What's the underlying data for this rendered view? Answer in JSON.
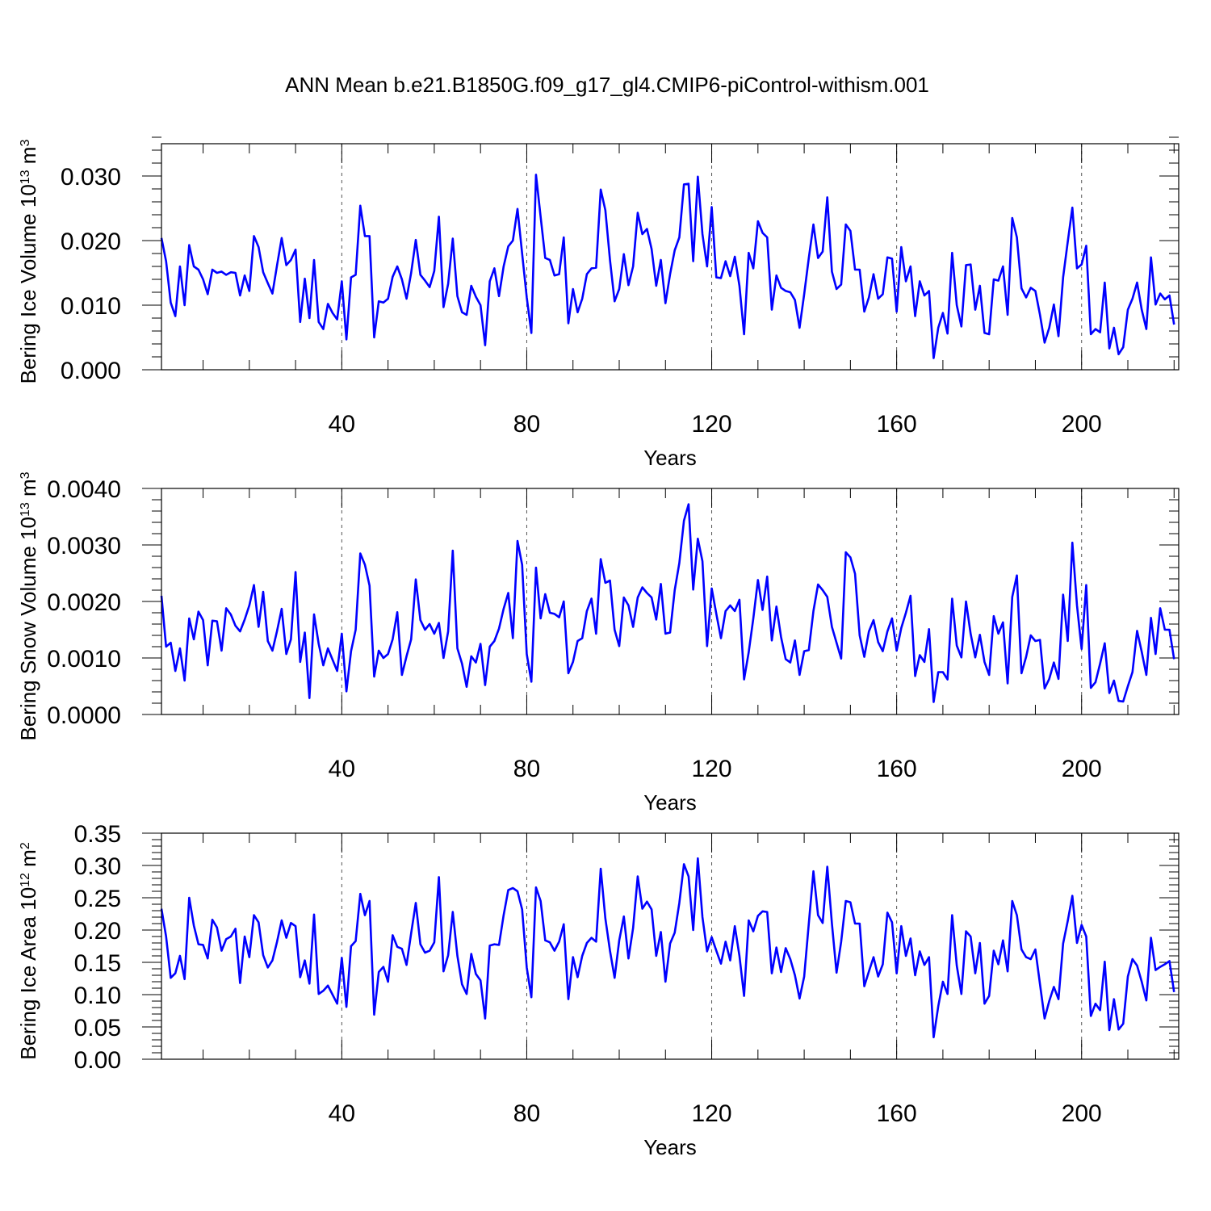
{
  "figure": {
    "title": "ANN Mean b.e21.B1850G.f09_g17_gl4.CMIP6-piControl-withism.001"
  },
  "chart_data": [
    {
      "type": "line",
      "id": "ice-volume",
      "ylabel": {
        "text": "Bering Ice Volume 10",
        "exp": "13",
        "unit": " m",
        "unit_exp": "3"
      },
      "xlabel": "Years",
      "xlim": [
        1,
        221
      ],
      "ylim": [
        0,
        0.035
      ],
      "xticks": [
        40,
        80,
        120,
        160,
        200
      ],
      "xtick_labels": [
        "40",
        "80",
        "120",
        "160",
        "200"
      ],
      "yticks": [
        0,
        0.01,
        0.02,
        0.03
      ],
      "ytick_labels": [
        "0.000",
        "0.010",
        "0.020",
        "0.030"
      ],
      "grid": "vertical-dashed-at-major-x-ticks",
      "series": [
        {
          "color": "#0000ff",
          "x_start": 1,
          "values": [
            0.0204,
            0.0168,
            0.0104,
            0.0083,
            0.016,
            0.01,
            0.0193,
            0.016,
            0.0155,
            0.014,
            0.0117,
            0.0155,
            0.015,
            0.0152,
            0.0147,
            0.0151,
            0.015,
            0.0115,
            0.0146,
            0.0122,
            0.0207,
            0.019,
            0.0151,
            0.0134,
            0.0118,
            0.0162,
            0.0204,
            0.0162,
            0.017,
            0.0186,
            0.0074,
            0.0141,
            0.008,
            0.017,
            0.0074,
            0.0063,
            0.0102,
            0.0088,
            0.0078,
            0.0137,
            0.0047,
            0.0143,
            0.0147,
            0.0254,
            0.0207,
            0.0207,
            0.005,
            0.0106,
            0.0104,
            0.011,
            0.0144,
            0.016,
            0.014,
            0.011,
            0.015,
            0.0201,
            0.0147,
            0.0138,
            0.0128,
            0.0153,
            0.0237,
            0.0097,
            0.0133,
            0.0203,
            0.0114,
            0.0089,
            0.0085,
            0.013,
            0.0113,
            0.01,
            0.0038,
            0.0137,
            0.0157,
            0.0114,
            0.016,
            0.0191,
            0.02,
            0.0249,
            0.018,
            0.0112,
            0.0057,
            0.0302,
            0.0237,
            0.0173,
            0.017,
            0.0146,
            0.0148,
            0.0205,
            0.0072,
            0.0125,
            0.0089,
            0.011,
            0.0148,
            0.0157,
            0.0158,
            0.0279,
            0.0247,
            0.017,
            0.0106,
            0.0125,
            0.0179,
            0.0131,
            0.016,
            0.0243,
            0.021,
            0.0218,
            0.0187,
            0.013,
            0.017,
            0.0103,
            0.0148,
            0.0185,
            0.0205,
            0.0287,
            0.0288,
            0.0168,
            0.0299,
            0.021,
            0.016,
            0.0252,
            0.0143,
            0.0142,
            0.0168,
            0.0145,
            0.0175,
            0.013,
            0.0055,
            0.0181,
            0.0157,
            0.023,
            0.0212,
            0.0205,
            0.0093,
            0.0146,
            0.0127,
            0.0122,
            0.012,
            0.0108,
            0.0065,
            0.0117,
            0.0173,
            0.0225,
            0.0173,
            0.0183,
            0.0267,
            0.0152,
            0.0125,
            0.0132,
            0.0225,
            0.0215,
            0.0155,
            0.0155,
            0.009,
            0.0112,
            0.0148,
            0.011,
            0.0117,
            0.0174,
            0.0172,
            0.009,
            0.019,
            0.0137,
            0.016,
            0.0083,
            0.0137,
            0.0115,
            0.0122,
            0.0018,
            0.0065,
            0.0088,
            0.0056,
            0.0181,
            0.01,
            0.0067,
            0.0162,
            0.0163,
            0.0093,
            0.013,
            0.0057,
            0.0055,
            0.014,
            0.0138,
            0.016,
            0.0085,
            0.0235,
            0.0205,
            0.0126,
            0.0112,
            0.0127,
            0.0122,
            0.0085,
            0.0042,
            0.0065,
            0.0101,
            0.0052,
            0.0143,
            0.0198,
            0.0251,
            0.0157,
            0.0163,
            0.0192,
            0.0055,
            0.0063,
            0.0058,
            0.0135,
            0.0033,
            0.0065,
            0.0024,
            0.0035,
            0.0093,
            0.011,
            0.0135,
            0.0093,
            0.0063,
            0.0174,
            0.0101,
            0.0118,
            0.0109,
            0.0115,
            0.007
          ]
        }
      ]
    },
    {
      "type": "line",
      "id": "snow-volume",
      "ylabel": {
        "text": "Bering Snow Volume 10",
        "exp": "13",
        "unit": " m",
        "unit_exp": "3"
      },
      "xlabel": "Years",
      "xlim": [
        1,
        221
      ],
      "ylim": [
        0,
        0.004
      ],
      "xticks": [
        40,
        80,
        120,
        160,
        200
      ],
      "xtick_labels": [
        "40",
        "80",
        "120",
        "160",
        "200"
      ],
      "yticks": [
        0,
        0.001,
        0.002,
        0.003,
        0.004
      ],
      "ytick_labels": [
        "0.0000",
        "0.0010",
        "0.0020",
        "0.0030",
        "0.0040"
      ],
      "grid": "vertical-dashed-at-major-x-ticks",
      "series": [
        {
          "color": "#0000ff",
          "x_start": 1,
          "values": [
            0.0021,
            0.0012,
            0.00127,
            0.00077,
            0.00117,
            0.0006,
            0.0017,
            0.00133,
            0.00182,
            0.00167,
            0.00087,
            0.00166,
            0.00165,
            0.00113,
            0.00188,
            0.00177,
            0.00157,
            0.00147,
            0.00168,
            0.00193,
            0.00229,
            0.00155,
            0.00217,
            0.0013,
            0.00113,
            0.00148,
            0.00187,
            0.00107,
            0.00133,
            0.00252,
            0.00093,
            0.00145,
            0.00029,
            0.00177,
            0.00125,
            0.00087,
            0.00117,
            0.00097,
            0.00077,
            0.00143,
            0.00041,
            0.00112,
            0.0015,
            0.00285,
            0.00265,
            0.00228,
            0.00067,
            0.00113,
            0.001,
            0.00107,
            0.00133,
            0.00181,
            0.0007,
            0.00103,
            0.00133,
            0.00239,
            0.00167,
            0.0015,
            0.0016,
            0.00143,
            0.00162,
            0.001,
            0.00147,
            0.0029,
            0.00117,
            0.0009,
            0.00049,
            0.00103,
            0.00092,
            0.00125,
            0.00052,
            0.0012,
            0.0013,
            0.00152,
            0.00187,
            0.00215,
            0.00135,
            0.00307,
            0.00265,
            0.00107,
            0.00058,
            0.0026,
            0.0017,
            0.00213,
            0.0018,
            0.00178,
            0.00172,
            0.002,
            0.00073,
            0.00093,
            0.0013,
            0.00135,
            0.00183,
            0.00205,
            0.00143,
            0.00275,
            0.00233,
            0.00237,
            0.0015,
            0.00121,
            0.00207,
            0.00193,
            0.00155,
            0.00207,
            0.00225,
            0.00215,
            0.00207,
            0.00168,
            0.00231,
            0.00143,
            0.00145,
            0.0022,
            0.00268,
            0.00343,
            0.00372,
            0.00221,
            0.00311,
            0.00271,
            0.00121,
            0.00223,
            0.00178,
            0.00135,
            0.00183,
            0.00193,
            0.00183,
            0.00203,
            0.00062,
            0.0011,
            0.0017,
            0.00238,
            0.00185,
            0.00244,
            0.00131,
            0.00191,
            0.00137,
            0.00098,
            0.00092,
            0.00131,
            0.0007,
            0.00112,
            0.00114,
            0.00183,
            0.0023,
            0.0022,
            0.00208,
            0.00155,
            0.00127,
            0.00099,
            0.00287,
            0.00278,
            0.00249,
            0.0014,
            0.00102,
            0.00147,
            0.00167,
            0.00128,
            0.00112,
            0.00147,
            0.0017,
            0.00113,
            0.00153,
            0.0018,
            0.0021,
            0.00068,
            0.00105,
            0.00093,
            0.00151,
            0.00022,
            0.00075,
            0.00075,
            0.00062,
            0.00205,
            0.00122,
            0.00101,
            0.002,
            0.00143,
            0.00101,
            0.00141,
            0.00093,
            0.0007,
            0.00174,
            0.00143,
            0.00163,
            0.00055,
            0.00208,
            0.00246,
            0.00073,
            0.00102,
            0.0014,
            0.0013,
            0.00132,
            0.00046,
            0.00063,
            0.00092,
            0.00063,
            0.00212,
            0.0013,
            0.00304,
            0.00193,
            0.00116,
            0.00229,
            0.00047,
            0.00057,
            0.0009,
            0.00126,
            0.00038,
            0.0006,
            0.00024,
            0.00023,
            0.0005,
            0.00075,
            0.00148,
            0.00111,
            0.0007,
            0.00171,
            0.00107,
            0.00188,
            0.0015,
            0.0015,
            0.00098
          ]
        }
      ]
    },
    {
      "type": "line",
      "id": "ice-area",
      "ylabel": {
        "text": "Bering Ice Area 10",
        "exp": "12",
        "unit": " m",
        "unit_exp": "2"
      },
      "xlabel": "Years",
      "xlim": [
        1,
        221
      ],
      "ylim": [
        0,
        0.35
      ],
      "xticks": [
        40,
        80,
        120,
        160,
        200
      ],
      "xtick_labels": [
        "40",
        "80",
        "120",
        "160",
        "200"
      ],
      "yticks": [
        0,
        0.05,
        0.1,
        0.15,
        0.2,
        0.25,
        0.3,
        0.35
      ],
      "ytick_labels": [
        "0.00",
        "0.05",
        "0.10",
        "0.15",
        "0.20",
        "0.25",
        "0.30",
        "0.35"
      ],
      "grid": "vertical-dashed-at-major-x-ticks",
      "series": [
        {
          "color": "#0000ff",
          "x_start": 1,
          "values": [
            0.233,
            0.19,
            0.126,
            0.133,
            0.16,
            0.124,
            0.25,
            0.207,
            0.178,
            0.177,
            0.156,
            0.216,
            0.204,
            0.168,
            0.186,
            0.19,
            0.202,
            0.118,
            0.19,
            0.158,
            0.223,
            0.212,
            0.161,
            0.142,
            0.153,
            0.182,
            0.215,
            0.188,
            0.211,
            0.206,
            0.127,
            0.153,
            0.117,
            0.224,
            0.101,
            0.106,
            0.114,
            0.1,
            0.086,
            0.157,
            0.081,
            0.175,
            0.183,
            0.256,
            0.223,
            0.245,
            0.069,
            0.135,
            0.143,
            0.12,
            0.192,
            0.174,
            0.171,
            0.146,
            0.195,
            0.242,
            0.178,
            0.165,
            0.168,
            0.181,
            0.282,
            0.136,
            0.161,
            0.228,
            0.16,
            0.116,
            0.101,
            0.163,
            0.132,
            0.122,
            0.063,
            0.176,
            0.178,
            0.177,
            0.223,
            0.262,
            0.265,
            0.26,
            0.232,
            0.142,
            0.096,
            0.266,
            0.245,
            0.184,
            0.181,
            0.168,
            0.182,
            0.209,
            0.093,
            0.158,
            0.127,
            0.16,
            0.18,
            0.188,
            0.182,
            0.295,
            0.218,
            0.168,
            0.126,
            0.184,
            0.221,
            0.156,
            0.203,
            0.283,
            0.233,
            0.244,
            0.232,
            0.16,
            0.197,
            0.12,
            0.179,
            0.196,
            0.242,
            0.302,
            0.283,
            0.2,
            0.311,
            0.22,
            0.167,
            0.189,
            0.168,
            0.148,
            0.182,
            0.153,
            0.206,
            0.16,
            0.098,
            0.215,
            0.198,
            0.222,
            0.229,
            0.228,
            0.133,
            0.173,
            0.135,
            0.172,
            0.155,
            0.13,
            0.094,
            0.128,
            0.21,
            0.291,
            0.223,
            0.211,
            0.298,
            0.21,
            0.134,
            0.182,
            0.245,
            0.243,
            0.21,
            0.21,
            0.113,
            0.136,
            0.158,
            0.128,
            0.147,
            0.227,
            0.212,
            0.133,
            0.206,
            0.16,
            0.187,
            0.13,
            0.167,
            0.146,
            0.158,
            0.034,
            0.082,
            0.12,
            0.101,
            0.223,
            0.145,
            0.101,
            0.198,
            0.19,
            0.133,
            0.18,
            0.086,
            0.098,
            0.168,
            0.147,
            0.184,
            0.136,
            0.245,
            0.223,
            0.17,
            0.158,
            0.155,
            0.17,
            0.116,
            0.063,
            0.09,
            0.112,
            0.093,
            0.179,
            0.214,
            0.253,
            0.18,
            0.208,
            0.19,
            0.067,
            0.086,
            0.076,
            0.151,
            0.045,
            0.093,
            0.046,
            0.055,
            0.128,
            0.155,
            0.145,
            0.12,
            0.091,
            0.188,
            0.138,
            0.143,
            0.147,
            0.152,
            0.104
          ]
        }
      ]
    }
  ]
}
